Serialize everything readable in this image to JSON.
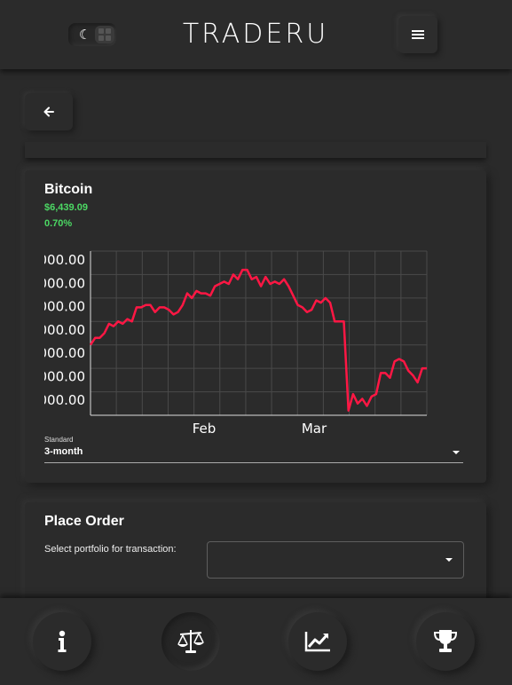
{
  "app": {
    "logo": "TRADERU"
  },
  "header": {
    "theme_toggle_icons": [
      "moon-icon",
      "grid-icon"
    ],
    "menu_icon": "hamburger-icon"
  },
  "back": {
    "icon": "arrow-left-icon"
  },
  "asset": {
    "name": "Bitcoin",
    "price": "$6,439.09",
    "change": "0.70%",
    "price_color": "#4cd964"
  },
  "chart_data": {
    "type": "line",
    "x_tick_labels": [
      "Feb",
      "Mar"
    ],
    "y_tick_labels": [
      "000.00",
      "000.00",
      "000.00",
      "000.00",
      "000.00",
      "000.00",
      "000.00"
    ],
    "series": [
      {
        "color": "#ff1744",
        "values": [
          6.0,
          6.3,
          6.3,
          6.5,
          6.9,
          6.8,
          7.0,
          6.9,
          7.1,
          7.0,
          7.6,
          7.6,
          7.7,
          7.7,
          7.4,
          7.6,
          7.6,
          7.5,
          7.3,
          7.4,
          7.7,
          8.2,
          8.0,
          8.3,
          8.2,
          8.2,
          8.1,
          8.5,
          8.6,
          8.7,
          8.6,
          9.0,
          8.8,
          9.2,
          9.2,
          8.8,
          8.9,
          8.5,
          8.9,
          8.6,
          8.7,
          8.6,
          8.8,
          8.5,
          8.1,
          7.7,
          7.6,
          7.4,
          7.5,
          7.9,
          7.8,
          8.0,
          7.8,
          7.0,
          7.0,
          7.0,
          3.2,
          3.9,
          3.5,
          3.7,
          3.4,
          3.8,
          3.9,
          4.8,
          4.8,
          4.6,
          5.3,
          5.4,
          5.3,
          4.9,
          4.7,
          4.4,
          5.0,
          5.0
        ]
      }
    ],
    "ylim": [
      3,
      10
    ],
    "grid": true,
    "legend": "none"
  },
  "timeframe": {
    "label": "Standard",
    "value": "3-month"
  },
  "order": {
    "title": "Place Order",
    "portfolio_label": "Select portfolio for transaction:",
    "portfolio_value": ""
  },
  "bottom_nav": {
    "items": [
      "info-icon",
      "scales-icon",
      "chart-line-icon",
      "trophy-icon"
    ],
    "active": "scales-icon"
  }
}
